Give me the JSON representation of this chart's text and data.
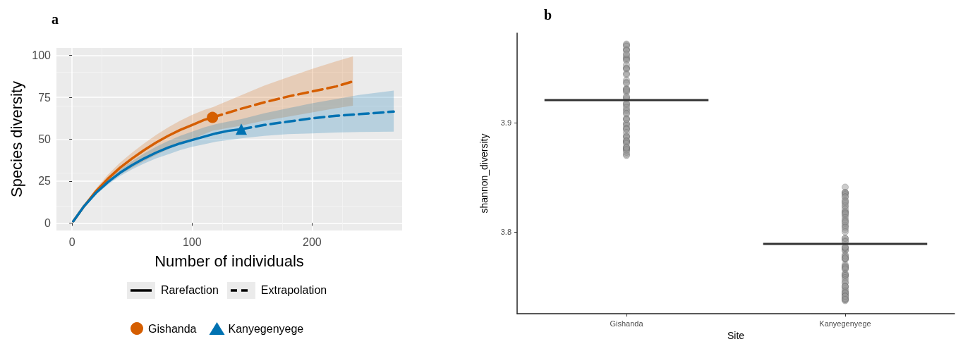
{
  "chart_data": [
    {
      "type": "line",
      "title": "a",
      "xlabel": "Number of individuals",
      "ylabel": "Species diversity",
      "xlim": [
        -13,
        275
      ],
      "xticks": [
        0,
        100,
        200
      ],
      "ylim": [
        -4.5,
        104.5
      ],
      "yticks": [
        0,
        25,
        50,
        75,
        100
      ],
      "grid": true,
      "legend": "bottom",
      "annotations": [
        "Rarefaction",
        "Extrapolation"
      ],
      "series": [
        {
          "color": "#d55e00",
          "line_style": "solid",
          "marker": "none",
          "x": [
            1,
            10,
            20,
            30,
            40,
            50,
            60,
            70,
            80,
            90,
            100,
            110,
            117
          ],
          "values": [
            1,
            10,
            19,
            26.5,
            33,
            38.5,
            43.5,
            48,
            52,
            55.5,
            58.5,
            61.5,
            63
          ],
          "lower": [
            1,
            9.5,
            17.5,
            24,
            29,
            33,
            37,
            40.5,
            44,
            47,
            50,
            53,
            55
          ],
          "upper": [
            1,
            10.5,
            20.5,
            29,
            36,
            42,
            47.5,
            52.5,
            57,
            61,
            64.5,
            67.5,
            69
          ]
        },
        {
          "color": "#d55e00",
          "line_style": "dashed",
          "marker": "none",
          "x": [
            117,
            140,
            160,
            180,
            200,
            220,
            234
          ],
          "values": [
            63,
            68,
            72,
            75.5,
            78.5,
            81.5,
            84.5
          ],
          "lower": [
            55,
            58,
            61,
            63.5,
            66,
            68.5,
            70
          ],
          "upper": [
            69,
            76,
            82,
            87,
            92,
            96.5,
            99.5
          ]
        },
        {
          "color": "#0072b2",
          "line_style": "solid",
          "marker": "none",
          "x": [
            1,
            10,
            20,
            30,
            40,
            50,
            60,
            70,
            80,
            90,
            100,
            110,
            120,
            130,
            141
          ],
          "values": [
            1,
            10,
            18,
            24.5,
            30,
            34.5,
            38.5,
            42,
            45,
            47.5,
            49.5,
            51.5,
            53.5,
            55,
            56
          ],
          "lower": [
            1,
            9.5,
            17,
            23,
            28,
            32,
            35.5,
            38.5,
            41,
            43.5,
            45.5,
            47,
            48.5,
            49.5,
            50.5
          ],
          "upper": [
            1,
            10.5,
            19,
            26,
            32,
            37,
            41.5,
            45.5,
            49,
            52,
            54.5,
            57,
            59,
            60.5,
            62
          ]
        },
        {
          "color": "#0072b2",
          "line_style": "dashed",
          "marker": "none",
          "x": [
            141,
            160,
            180,
            200,
            220,
            240,
            268
          ],
          "values": [
            56,
            58.5,
            60.5,
            62.5,
            64,
            65,
            66.5
          ],
          "lower": [
            50.5,
            52,
            53,
            53.5,
            54,
            54.3,
            54.5
          ],
          "upper": [
            62,
            65.5,
            68.5,
            71.5,
            74,
            76.5,
            79
          ]
        },
        {
          "name": "Gishanda",
          "type": "scatter",
          "color": "#d55e00",
          "marker": "circle",
          "x": [
            117
          ],
          "values": [
            63
          ]
        },
        {
          "name": "Kanyegenyege",
          "type": "scatter",
          "color": "#0072b2",
          "marker": "triangle",
          "x": [
            141
          ],
          "values": [
            56
          ]
        }
      ]
    },
    {
      "type": "scatter",
      "title": "b",
      "xlabel": "Site",
      "ylabel": "shannon_diversity",
      "categories": [
        "Gishanda",
        "Kanyegenyege"
      ],
      "ylim": [
        3.725,
        3.982
      ],
      "yticks": [
        3.8,
        3.9
      ],
      "series": [
        {
          "color": "#999999",
          "marker": "circle",
          "x": [
            "Gishanda",
            "Gishanda",
            "Gishanda",
            "Gishanda",
            "Gishanda",
            "Gishanda",
            "Gishanda",
            "Gishanda",
            "Gishanda",
            "Gishanda",
            "Gishanda",
            "Gishanda",
            "Gishanda",
            "Gishanda",
            "Gishanda",
            "Gishanda",
            "Gishanda",
            "Gishanda",
            "Gishanda",
            "Gishanda",
            "Gishanda",
            "Gishanda",
            "Gishanda",
            "Gishanda",
            "Gishanda",
            "Gishanda",
            "Gishanda",
            "Gishanda",
            "Gishanda",
            "Gishanda",
            "Gishanda",
            "Gishanda",
            "Gishanda",
            "Gishanda",
            "Gishanda",
            "Gishanda",
            "Gishanda",
            "Gishanda",
            "Gishanda",
            "Gishanda",
            "Gishanda",
            "Gishanda",
            "Gishanda",
            "Gishanda",
            "Gishanda",
            "Gishanda",
            "Gishanda",
            "Gishanda",
            "Gishanda",
            "Gishanda",
            "Gishanda",
            "Gishanda",
            "Gishanda",
            "Gishanda",
            "Gishanda",
            "Gishanda",
            "Gishanda",
            "Gishanda",
            "Gishanda",
            "Gishanda",
            "Gishanda",
            "Gishanda",
            "Gishanda",
            "Gishanda"
          ],
          "values": [
            3.972,
            3.971,
            3.967,
            3.959,
            3.96,
            3.967,
            3.97,
            3.958,
            3.962,
            3.966,
            3.963,
            3.957,
            3.95,
            3.95,
            3.953,
            3.949,
            3.945,
            3.944,
            3.939,
            3.937,
            3.931,
            3.931,
            3.936,
            3.929,
            3.928,
            3.93,
            3.922,
            3.923,
            3.916,
            3.918,
            3.917,
            3.924,
            3.912,
            3.909,
            3.911,
            3.914,
            3.903,
            3.904,
            3.899,
            3.908,
            3.899,
            3.903,
            3.897,
            3.895,
            3.894,
            3.894,
            3.887,
            3.888,
            3.882,
            3.891,
            3.883,
            3.884,
            3.887,
            3.883,
            3.878,
            3.876,
            3.877,
            3.881,
            3.871,
            3.87,
            3.875,
            3.875,
            3.873,
            3.877
          ]
        },
        {
          "color": "#999999",
          "marker": "circle",
          "x": [
            "Kanyegenyege",
            "Kanyegenyege",
            "Kanyegenyege",
            "Kanyegenyege",
            "Kanyegenyege",
            "Kanyegenyege",
            "Kanyegenyege",
            "Kanyegenyege",
            "Kanyegenyege",
            "Kanyegenyege",
            "Kanyegenyege",
            "Kanyegenyege",
            "Kanyegenyege",
            "Kanyegenyege",
            "Kanyegenyege",
            "Kanyegenyege",
            "Kanyegenyege",
            "Kanyegenyege",
            "Kanyegenyege",
            "Kanyegenyege",
            "Kanyegenyege",
            "Kanyegenyege",
            "Kanyegenyege",
            "Kanyegenyege",
            "Kanyegenyege",
            "Kanyegenyege",
            "Kanyegenyege",
            "Kanyegenyege",
            "Kanyegenyege",
            "Kanyegenyege",
            "Kanyegenyege",
            "Kanyegenyege",
            "Kanyegenyege",
            "Kanyegenyege",
            "Kanyegenyege",
            "Kanyegenyege",
            "Kanyegenyege",
            "Kanyegenyege",
            "Kanyegenyege",
            "Kanyegenyege",
            "Kanyegenyege",
            "Kanyegenyege",
            "Kanyegenyege",
            "Kanyegenyege",
            "Kanyegenyege",
            "Kanyegenyege",
            "Kanyegenyege",
            "Kanyegenyege",
            "Kanyegenyege",
            "Kanyegenyege",
            "Kanyegenyege",
            "Kanyegenyege",
            "Kanyegenyege",
            "Kanyegenyege",
            "Kanyegenyege",
            "Kanyegenyege",
            "Kanyegenyege",
            "Kanyegenyege",
            "Kanyegenyege",
            "Kanyegenyege",
            "Kanyegenyege",
            "Kanyegenyege",
            "Kanyegenyege",
            "Kanyegenyege",
            "Kanyegenyege",
            "Kanyegenyege",
            "Kanyegenyege",
            "Kanyegenyege",
            "Kanyegenyege",
            "Kanyegenyege",
            "Kanyegenyege",
            "Kanyegenyege",
            "Kanyegenyege",
            "Kanyegenyege",
            "Kanyegenyege",
            "Kanyegenyege",
            "Kanyegenyege",
            "Kanyegenyege",
            "Kanyegenyege",
            "Kanyegenyege",
            "Kanyegenyege"
          ],
          "values": [
            3.835,
            3.836,
            3.836,
            3.836,
            3.841,
            3.834,
            3.832,
            3.823,
            3.829,
            3.832,
            3.827,
            3.826,
            3.824,
            3.828,
            3.819,
            3.818,
            3.815,
            3.818,
            3.816,
            3.821,
            3.817,
            3.813,
            3.811,
            3.81,
            3.805,
            3.808,
            3.806,
            3.809,
            3.802,
            3.804,
            3.8,
            3.794,
            3.792,
            3.794,
            3.791,
            3.783,
            3.785,
            3.783,
            3.785,
            3.786,
            3.786,
            3.779,
            3.777,
            3.775,
            3.776,
            3.775,
            3.778,
            3.776,
            3.768,
            3.769,
            3.766,
            3.77,
            3.767,
            3.768,
            3.766,
            3.76,
            3.76,
            3.762,
            3.761,
            3.76,
            3.758,
            3.756,
            3.753,
            3.754,
            3.75,
            3.748,
            3.75,
            3.75,
            3.745,
            3.746,
            3.743,
            3.744,
            3.742,
            3.744,
            3.737,
            3.738,
            3.739,
            3.739,
            3.741,
            3.741,
            3.738
          ]
        },
        {
          "type": "box",
          "color": "#333333",
          "boxes": [
            {
              "low": 3.9206,
              "q1": 3.9206,
              "median": 3.9206,
              "q3": 3.9206,
              "high": 3.9206
            },
            {
              "low": 3.789,
              "q1": 3.789,
              "median": 3.789,
              "q3": 3.789,
              "high": 3.789
            }
          ]
        }
      ]
    }
  ]
}
